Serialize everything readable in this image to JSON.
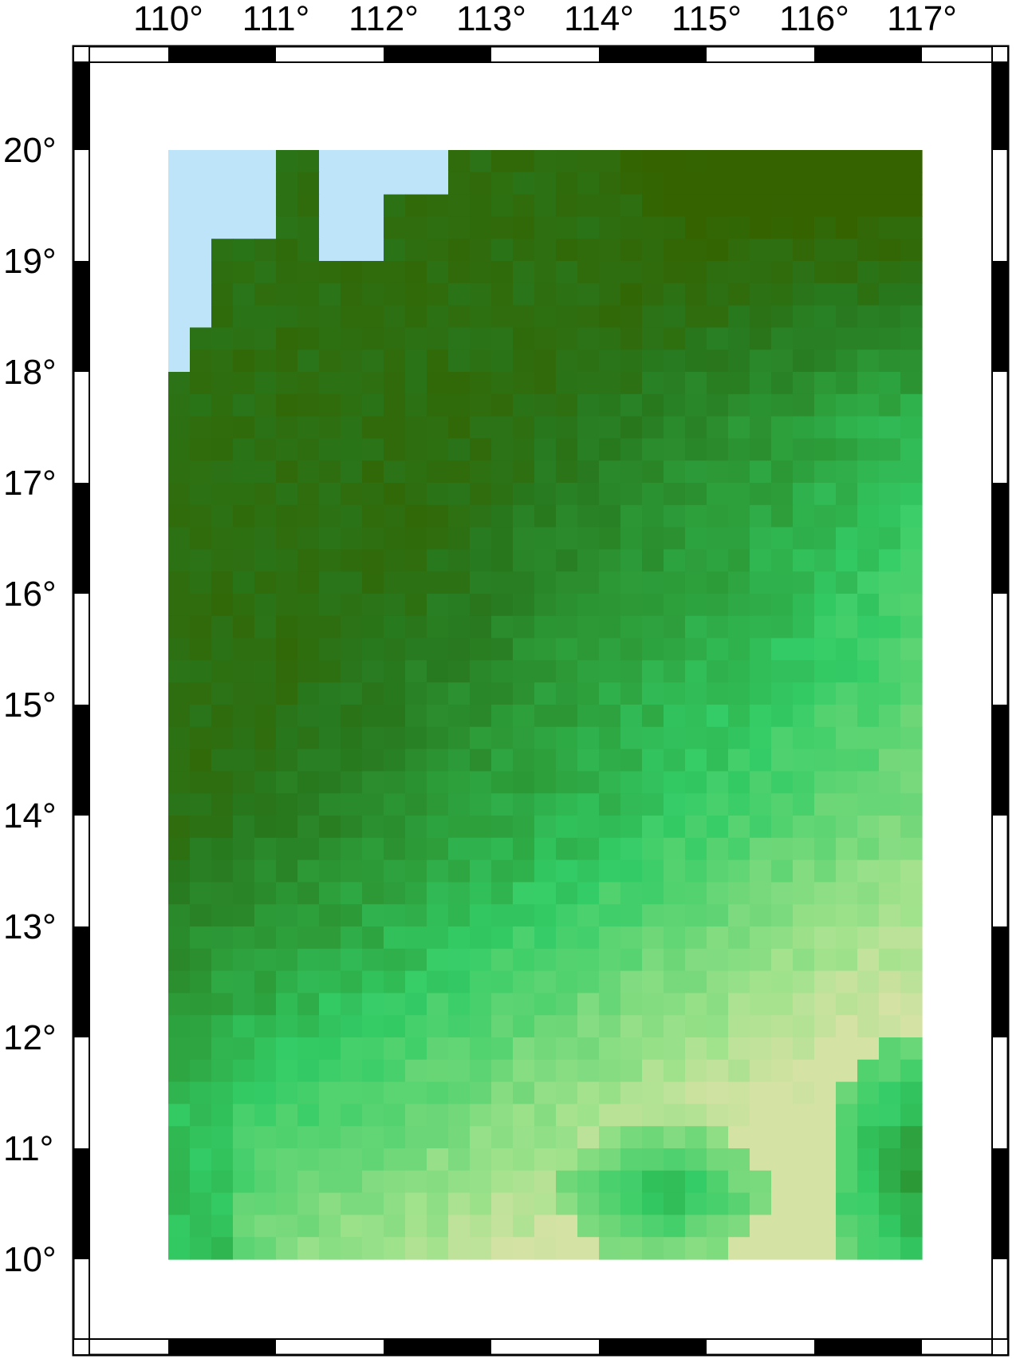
{
  "map": {
    "projection": "Cartesian lon/lat grid map",
    "lon_range": [
      109.0,
      117.8
    ],
    "lat_range": [
      9.0,
      21.0
    ],
    "data_extent": {
      "lon": [
        110.0,
        117.0
      ],
      "lat": [
        10.0,
        20.0
      ]
    },
    "grid_spacing_deg": 0.2,
    "colormap": "dark green (high) to pale yellow-green (low); light blue = no data/water",
    "frame_style": "alternating black/white ticks every 1 degree",
    "colors": {
      "water": "#bee4fa",
      "darkest": "#356300",
      "dark": "#2b8a2c",
      "mid": "#33cc66",
      "light": "#9ee38a",
      "pale": "#d2e2a3"
    }
  },
  "axes": {
    "x_ticks": [
      "110°",
      "111°",
      "112°",
      "113°",
      "114°",
      "115°",
      "116°",
      "117°"
    ],
    "x_values": [
      110,
      111,
      112,
      113,
      114,
      115,
      116,
      117
    ],
    "y_ticks": [
      "20°",
      "19°",
      "18°",
      "17°",
      "16°",
      "15°",
      "14°",
      "13°",
      "12°",
      "11°",
      "10°"
    ],
    "y_values": [
      20,
      19,
      18,
      17,
      16,
      15,
      14,
      13,
      12,
      11,
      10
    ]
  }
}
